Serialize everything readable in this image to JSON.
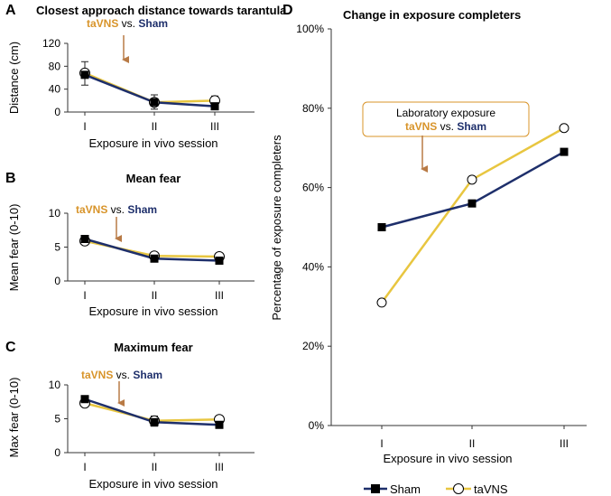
{
  "colors": {
    "sham": "#1e2f6b",
    "tavns": "#e8c640",
    "arrow": "#b87a45",
    "axis": "#333333"
  },
  "chart_data": [
    {
      "panel": "A",
      "type": "line",
      "title": "Closest approach distance towards tarantula",
      "xlabel": "Exposure in vivo session",
      "ylabel": "Distance (cm)",
      "categories": [
        "I",
        "II",
        "III"
      ],
      "ylim": [
        0,
        120
      ],
      "yticks": [
        "0",
        "40",
        "80",
        "120"
      ],
      "ytick_values": [
        0,
        40,
        80,
        120
      ],
      "series": [
        {
          "name": "Sham",
          "values": [
            65,
            17,
            10
          ],
          "marker": "square"
        },
        {
          "name": "taVNS",
          "values": [
            68,
            17,
            20
          ],
          "marker": "circle"
        }
      ],
      "errors": [
        {
          "x": 0,
          "lo": 47,
          "hi": 88
        },
        {
          "x": 1,
          "lo": 5,
          "hi": 30
        },
        {
          "x": 2,
          "lo": 12,
          "hi": 28
        }
      ],
      "annotation": {
        "a": "taVNS",
        "vs": "vs.",
        "b": "Sham",
        "x_pos": 0.5
      }
    },
    {
      "panel": "B",
      "type": "line",
      "title": "Mean fear",
      "xlabel": "Exposure in vivo session",
      "ylabel": "Mean fear (0-10)",
      "categories": [
        "I",
        "II",
        "III"
      ],
      "ylim": [
        0,
        10
      ],
      "yticks": [
        "0",
        "5",
        "10"
      ],
      "ytick_values": [
        0,
        5,
        10
      ],
      "series": [
        {
          "name": "Sham",
          "values": [
            6.2,
            3.3,
            3.0
          ],
          "marker": "square"
        },
        {
          "name": "taVNS",
          "values": [
            5.9,
            3.7,
            3.6
          ],
          "marker": "circle"
        }
      ],
      "errors": [],
      "annotation": {
        "a": "taVNS",
        "vs": "vs.",
        "b": "Sham",
        "x_pos": 0.5
      }
    },
    {
      "panel": "C",
      "type": "line",
      "title": "Maximum fear",
      "xlabel": "Exposure in vivo session",
      "ylabel": "Max fear (0-10)",
      "categories": [
        "I",
        "II",
        "III"
      ],
      "ylim": [
        0,
        10
      ],
      "yticks": [
        "0",
        "5",
        "10"
      ],
      "ytick_values": [
        0,
        5,
        10
      ],
      "series": [
        {
          "name": "Sham",
          "values": [
            7.9,
            4.5,
            4.1
          ],
          "marker": "square"
        },
        {
          "name": "taVNS",
          "values": [
            7.3,
            4.7,
            4.9
          ],
          "marker": "circle"
        }
      ],
      "errors": [
        {
          "x": 1,
          "lo": 3.9,
          "hi": 5.4
        }
      ],
      "annotation": {
        "a": "taVNS",
        "vs": "vs.",
        "b": "Sham",
        "x_pos": 0.4
      }
    },
    {
      "panel": "D",
      "type": "line",
      "title": "Change in exposure completers",
      "xlabel": "Exposure in vivo session",
      "ylabel": "Percentage of exposure completers",
      "categories": [
        "I",
        "II",
        "III"
      ],
      "ylim": [
        0,
        100
      ],
      "yticks": [
        "0%",
        "20%",
        "40%",
        "60%",
        "80%",
        "100%"
      ],
      "ytick_values": [
        0,
        20,
        40,
        60,
        80,
        100
      ],
      "series": [
        {
          "name": "Sham",
          "values": [
            50,
            56,
            69
          ],
          "marker": "square"
        },
        {
          "name": "taVNS",
          "values": [
            31,
            62,
            75
          ],
          "marker": "circle"
        }
      ],
      "errors": [],
      "annotation": {
        "line1": "Laboratory exposure",
        "a": "taVNS",
        "vs": "vs.",
        "b": "Sham",
        "x_pos": 0.5
      }
    }
  ],
  "legend": {
    "sham": "Sham",
    "tavns": "taVNS"
  }
}
